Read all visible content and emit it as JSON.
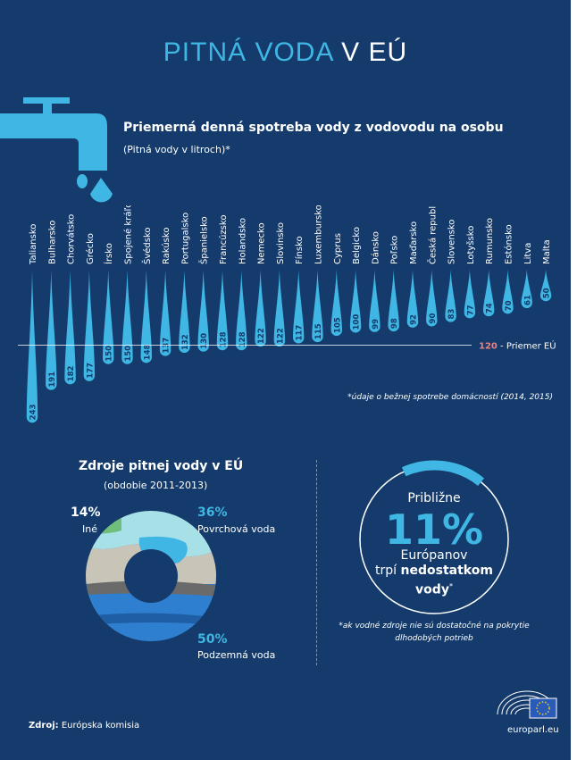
{
  "header": {
    "title_part1": "PITNÁ VODA",
    "title_part2": "V EÚ"
  },
  "colors": {
    "accent": "#3fb6e3",
    "background": "#143b6b",
    "average": "#f08080"
  },
  "consumption": {
    "title": "Priemerná denná spotreba vody z vodovodu na osobu",
    "subtitle": "(Pitná vody v litroch)*",
    "average_value": "120",
    "average_label": " - Priemer EÚ",
    "footnote": "*údaje o bežnej spotrebe domácností (2014, 2015)"
  },
  "chart_data": [
    {
      "type": "bar",
      "title": "Priemerná denná spotreba vody z vodovodu na osobu",
      "subtitle": "(Pitná vody v litroch)*",
      "categories": [
        "Taliansko",
        "Bulharsko",
        "Chorvátsko",
        "Grécko",
        "Írsko",
        "Spojené kráľovstvo",
        "Švédsko",
        "Rakúsko",
        "Portugalsko",
        "Španielsko",
        "Francúzsko",
        "Holandsko",
        "Nemecko",
        "Slovinsko",
        "Fínsko",
        "Luxembursko",
        "Cyprus",
        "Belgicko",
        "Dánsko",
        "Poľsko",
        "Maďarsko",
        "Česká republika",
        "Slovensko",
        "Lotyšsko",
        "Rumunsko",
        "Estónsko",
        "Litva",
        "Malta"
      ],
      "values": [
        243,
        191,
        182,
        177,
        150,
        150,
        148,
        137,
        132,
        130,
        128,
        128,
        122,
        122,
        117,
        115,
        105,
        100,
        99,
        98,
        92,
        90,
        83,
        77,
        74,
        70,
        61,
        50
      ],
      "reference_line": {
        "value": 120,
        "label": "Priemer EÚ"
      }
    },
    {
      "type": "pie",
      "title": "Zdroje pitnej vody v EÚ",
      "subtitle": "(obdobie 2011-2013)",
      "categories": [
        "Iné",
        "Povrchová voda",
        "Podzemná voda"
      ],
      "values": [
        14,
        36,
        50
      ]
    }
  ],
  "sources": {
    "title": "Zdroje pitnej vody v EÚ",
    "period": "(obdobie 2011-2013)",
    "other_pct": "14%",
    "other_label": "Iné",
    "surface_pct": "36%",
    "surface_label": "Povrchová voda",
    "ground_pct": "50%",
    "ground_label": "Podzemná voda"
  },
  "shortage": {
    "approx": "Približne",
    "value": "11%",
    "fraction": 0.11,
    "people": "Európanov",
    "line_prefix": "trpí ",
    "line_bold": "nedostatkom",
    "line2_bold": "vody",
    "line2_sup": "*",
    "note": "*ak vodné zdroje nie sú dostatočné na pokrytie dlhodobých potrieb"
  },
  "footer": {
    "source_prefix": "Zdroj:",
    "source_text": " Európska komisia",
    "site": "europarl.eu"
  }
}
